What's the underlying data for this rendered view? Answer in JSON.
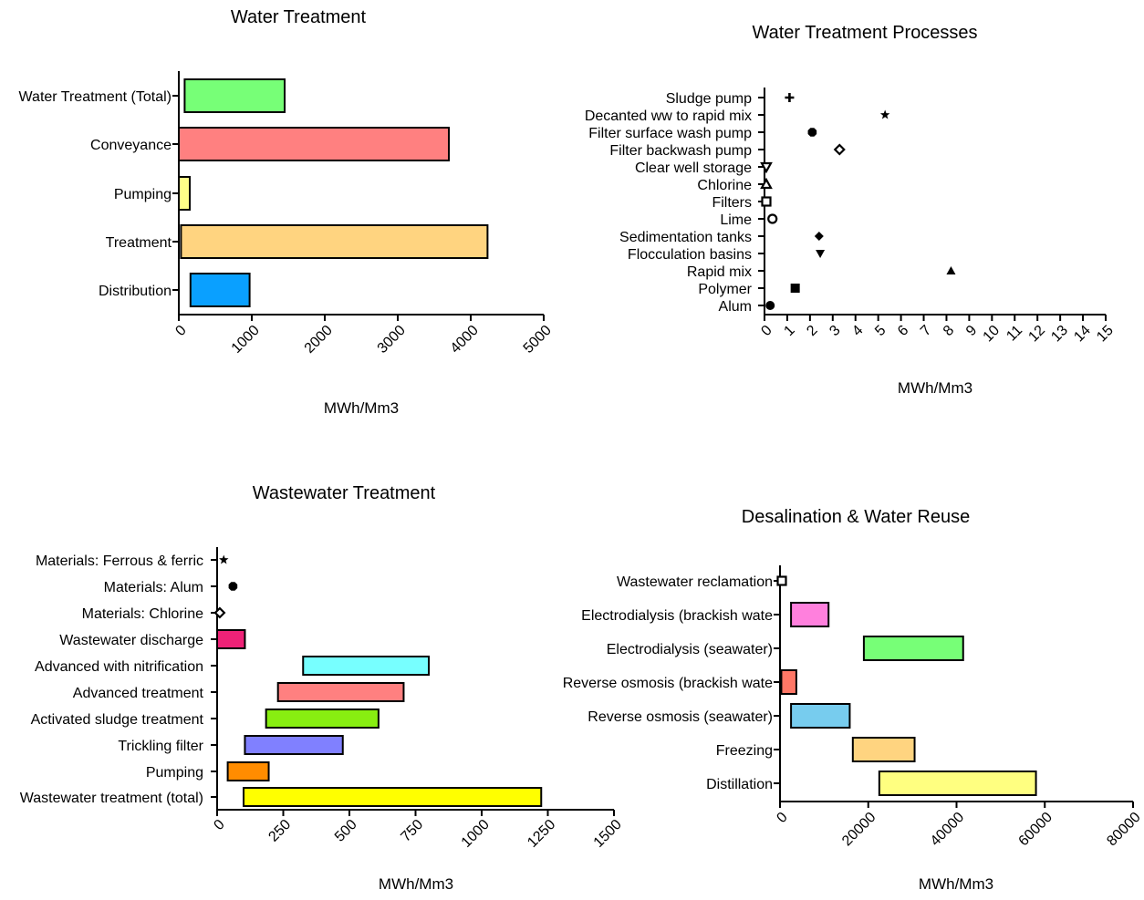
{
  "chart_data": [
    {
      "type": "bar",
      "orientation": "horizontal-range",
      "title": "Water Treatment",
      "xlabel": "MWh/Mm3",
      "xlim": [
        0,
        5000
      ],
      "xticks": [
        0,
        1000,
        2000,
        3000,
        4000,
        5000
      ],
      "categories": [
        "Water Treatment (Total)",
        "Conveyance",
        "Pumping",
        "Treatment",
        "Distribution"
      ],
      "ranges": [
        [
          80,
          1450
        ],
        [
          0,
          3700
        ],
        [
          0,
          150
        ],
        [
          30,
          4230
        ],
        [
          160,
          970
        ]
      ],
      "colors": [
        "#77ff77",
        "#ff8080",
        "#ffff88",
        "#ffd480",
        "#0aa0ff"
      ]
    },
    {
      "type": "scatter",
      "title": "Water Treatment Processes",
      "xlabel": "MWh/Mm3",
      "xlim": [
        0,
        15
      ],
      "xticks": [
        0,
        1,
        2,
        3,
        4,
        5,
        6,
        7,
        8,
        9,
        10,
        11,
        12,
        13,
        14,
        15
      ],
      "categories": [
        "Sludge pump",
        "Decanted ww to rapid mix",
        "Filter surface wash pump",
        "Filter backwash pump",
        "Clear well storage",
        "Chlorine",
        "Filters",
        "Lime",
        "Sedimentation tanks",
        "Flocculation basins",
        "Rapid mix",
        "Polymer",
        "Alum"
      ],
      "values": [
        1.1,
        5.3,
        2.1,
        3.3,
        0.03,
        0.03,
        0.05,
        0.35,
        2.4,
        2.45,
        8.2,
        1.35,
        0.25
      ],
      "markers": [
        "plus",
        "star",
        "hexagon",
        "diamond-open",
        "triangle-down-open",
        "triangle-up-open",
        "square-open",
        "circle-open",
        "diamond",
        "triangle-down",
        "triangle-up",
        "square",
        "circle"
      ]
    },
    {
      "type": "bar",
      "orientation": "horizontal-range",
      "title": "Wastewater Treatment",
      "xlabel": "MWh/Mm3",
      "xlim": [
        0,
        1500
      ],
      "xticks": [
        0,
        250,
        500,
        750,
        1000,
        1250,
        1500
      ],
      "categories": [
        "Materials: Ferrous & ferric",
        "Materials: Alum",
        "Materials: Chlorine",
        "Wastewater discharge",
        "Advanced with nitrification",
        "Advanced treatment",
        "Activated sludge treatment",
        "Trickling filter",
        "Pumping",
        "Wastewater treatment (total)"
      ],
      "ranges": [
        null,
        null,
        null,
        [
          0,
          105
        ],
        [
          325,
          800
        ],
        [
          230,
          705
        ],
        [
          185,
          610
        ],
        [
          105,
          475
        ],
        [
          40,
          195
        ],
        [
          100,
          1225
        ]
      ],
      "points": [
        25,
        60,
        10,
        null,
        null,
        null,
        null,
        null,
        null,
        null
      ],
      "markers": [
        "star",
        "hexagon",
        "diamond-open",
        null,
        null,
        null,
        null,
        null,
        null,
        null
      ],
      "colors": [
        null,
        null,
        null,
        "#ee2277",
        "#77ffff",
        "#ff8080",
        "#88ee11",
        "#8080ff",
        "#ff8c00",
        "#ffff00"
      ]
    },
    {
      "type": "bar",
      "orientation": "horizontal-range",
      "title": "Desalination & Water Reuse",
      "xlabel": "MWh/Mm3",
      "xlim": [
        0,
        80000
      ],
      "xticks": [
        0,
        20000,
        40000,
        60000,
        80000
      ],
      "categories": [
        "Wastewater reclamation",
        "Electrodialysis (brackish wate",
        "Electrodialysis (seawater)",
        "Reverse osmosis (brackish wate",
        "Reverse osmosis (seawater)",
        "Freezing",
        "Distillation"
      ],
      "ranges": [
        null,
        [
          2500,
          11000
        ],
        [
          19000,
          41500
        ],
        [
          300,
          3700
        ],
        [
          2500,
          15800
        ],
        [
          16500,
          30500
        ],
        [
          22500,
          58000
        ]
      ],
      "points": [
        0,
        null,
        null,
        null,
        null,
        null,
        null
      ],
      "markers": [
        "square-open",
        null,
        null,
        null,
        null,
        null,
        null
      ],
      "colors": [
        null,
        "#ff80dd",
        "#77ff77",
        "#ff7766",
        "#77ccee",
        "#ffd480",
        "#ffff80"
      ]
    }
  ]
}
